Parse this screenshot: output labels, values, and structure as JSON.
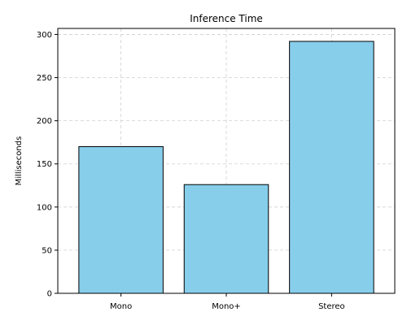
{
  "chart_data": {
    "type": "bar",
    "title": "Inference Time",
    "xlabel": "",
    "ylabel": "Milliseconds",
    "categories": [
      "Mono",
      "Mono+",
      "Stereo"
    ],
    "values": [
      170,
      126,
      292
    ],
    "ylim": [
      0,
      307
    ],
    "yticks": [
      0,
      50,
      100,
      150,
      200,
      250,
      300
    ],
    "grid": true,
    "bar_color": "#87CEEB",
    "bar_edge_color": "#000000",
    "grid_color": "#d0d0d0"
  }
}
